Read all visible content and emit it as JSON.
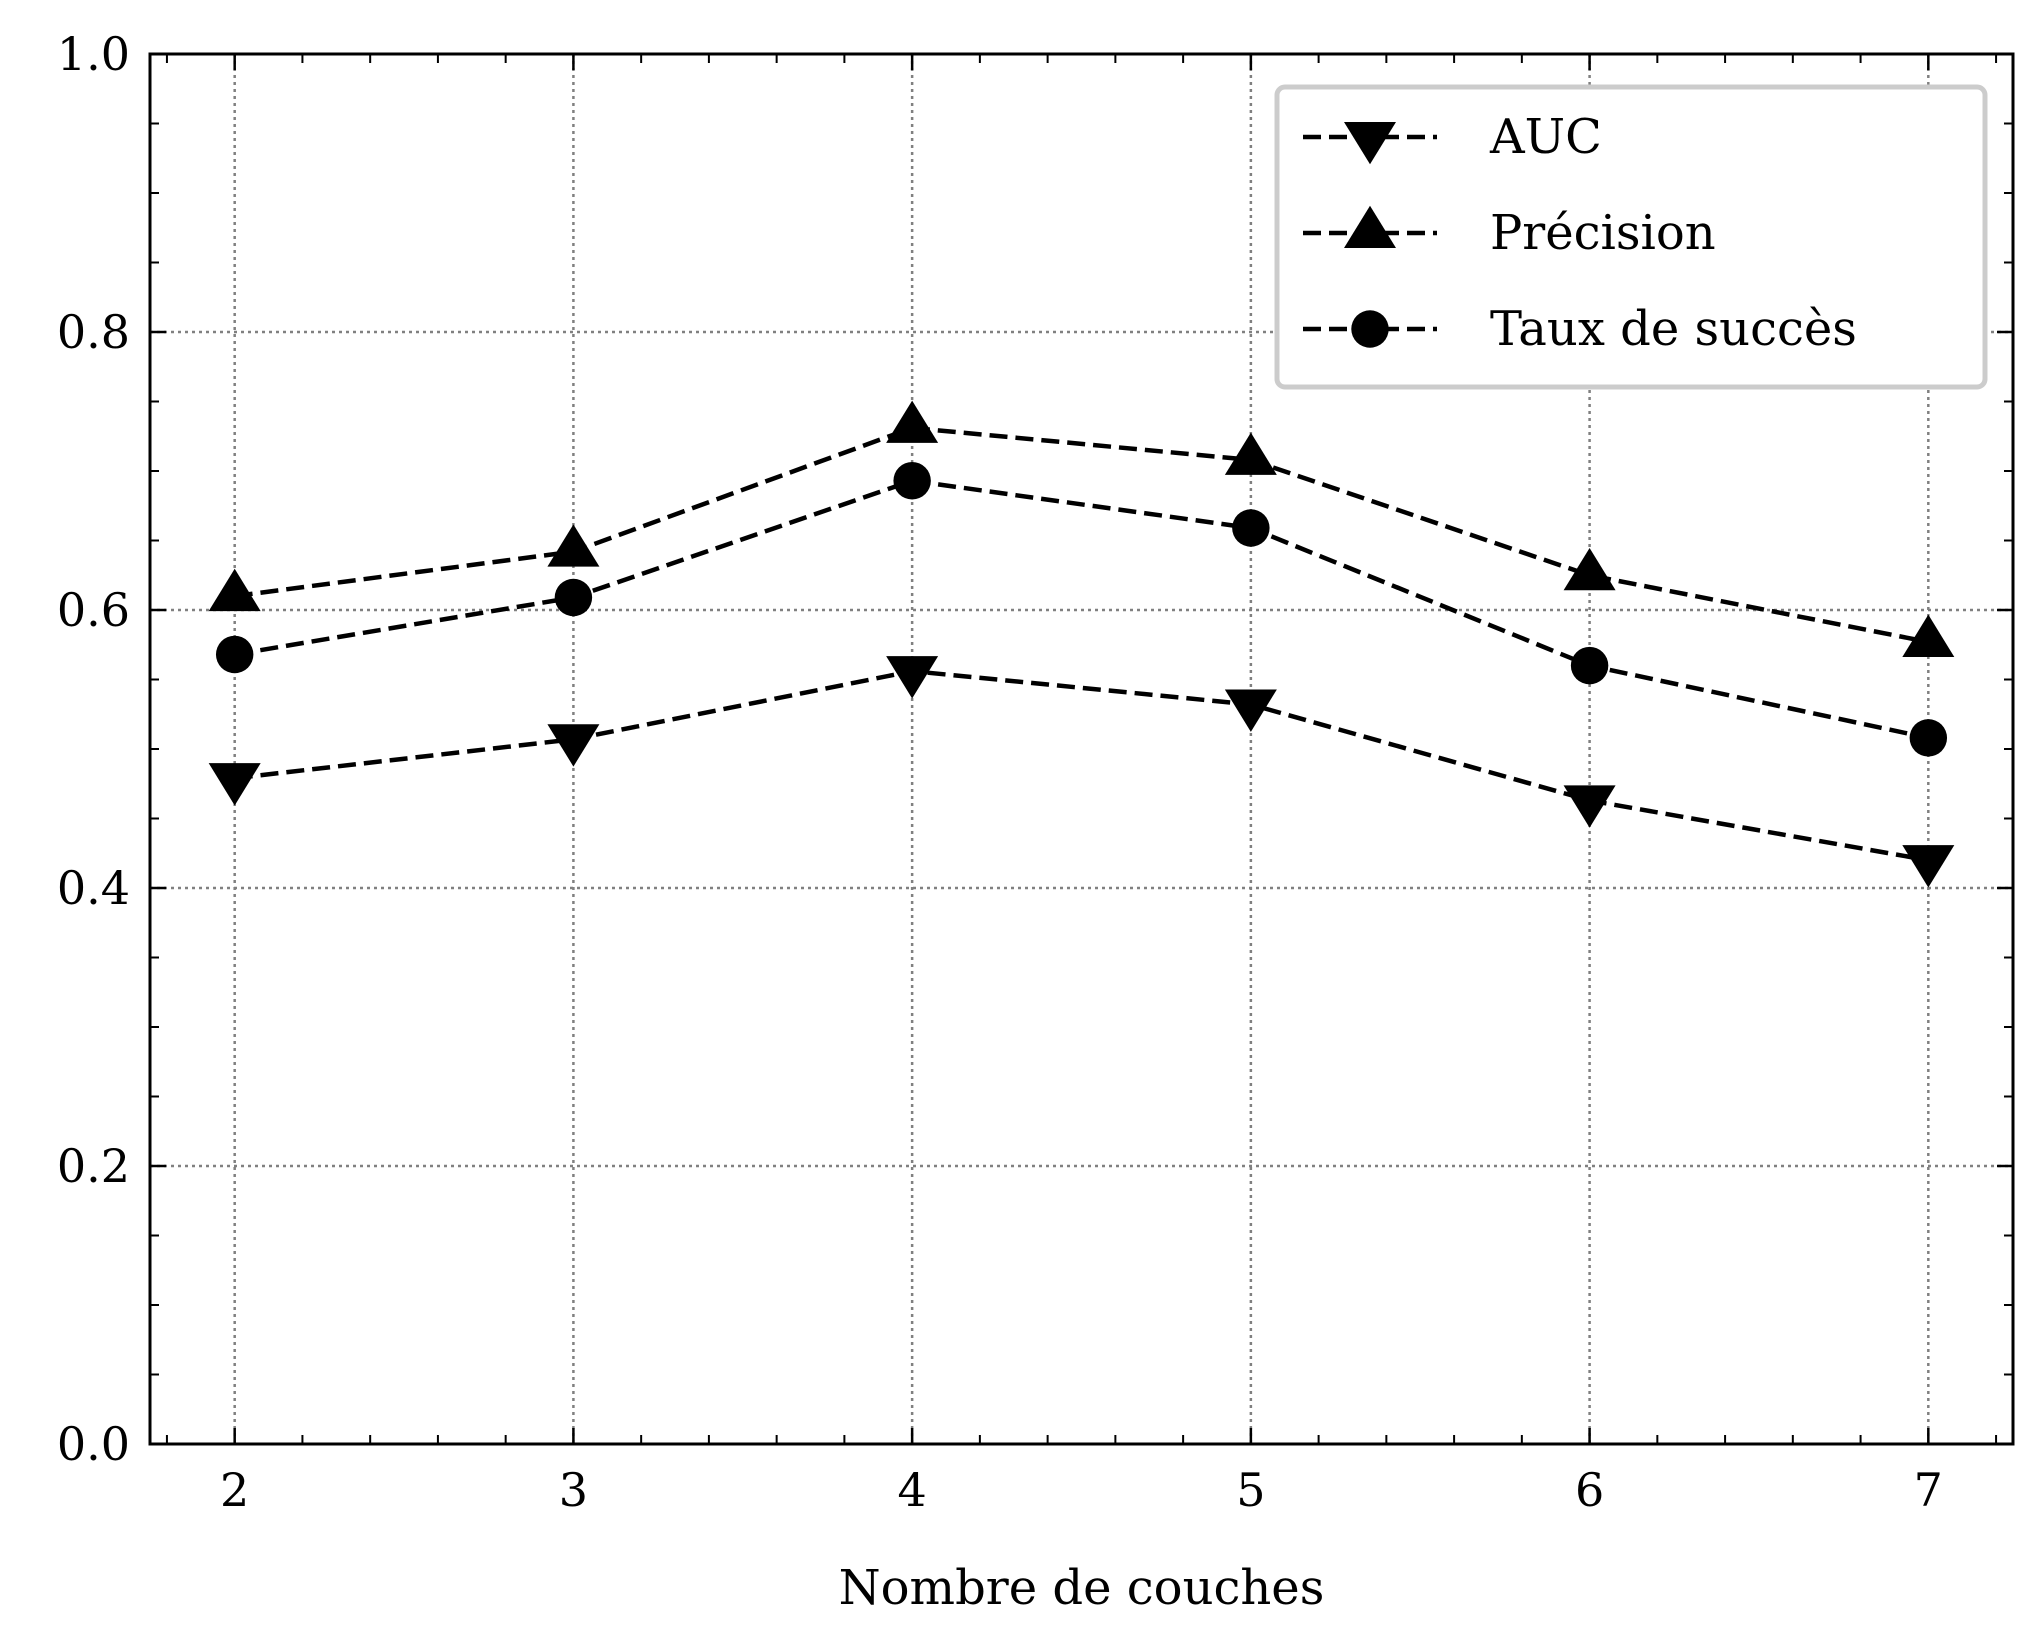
{
  "chart_data": {
    "type": "line",
    "title": "",
    "xlabel": "Nombre de couches",
    "ylabel": "",
    "x": [
      2,
      3,
      4,
      5,
      6,
      7
    ],
    "xticks": [
      "2",
      "3",
      "4",
      "5",
      "6",
      "7"
    ],
    "xlim": [
      1.75,
      7.25
    ],
    "ylim": [
      0.0,
      1.0
    ],
    "yticks": [
      "0.0",
      "0.2",
      "0.4",
      "0.6",
      "0.8",
      "1.0"
    ],
    "grid": true,
    "legend_position": "top-right",
    "series": [
      {
        "name": "AUC",
        "marker": "triangle-down",
        "values": [
          0.479,
          0.507,
          0.556,
          0.532,
          0.463,
          0.42
        ]
      },
      {
        "name": "Précision",
        "marker": "triangle-up",
        "values": [
          0.61,
          0.642,
          0.731,
          0.708,
          0.625,
          0.577
        ]
      },
      {
        "name": "Taux de succès",
        "marker": "circle",
        "values": [
          0.568,
          0.609,
          0.693,
          0.659,
          0.56,
          0.508
        ]
      }
    ],
    "colors": {
      "line": "#000000",
      "grid": "#808080",
      "legend_border": "#cccccc"
    }
  }
}
